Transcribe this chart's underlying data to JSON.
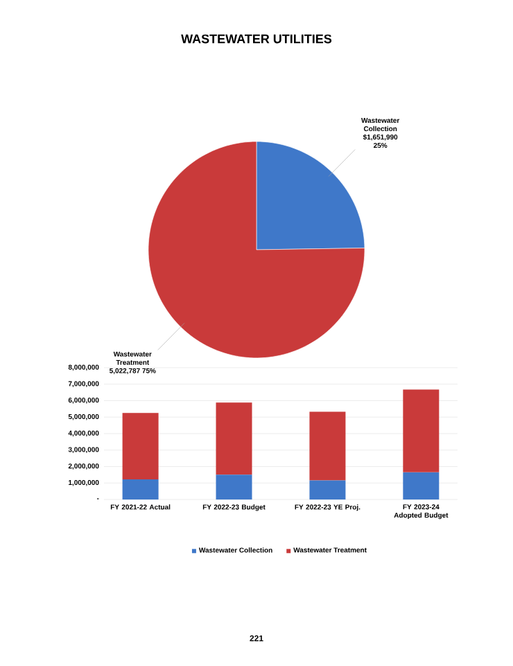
{
  "chart_data": [
    {
      "type": "pie",
      "title": "WASTEWATER UTILITIES",
      "categories": [
        "Wastewater Collection",
        "Wastewater Treatment"
      ],
      "values": [
        1651990,
        5022787
      ],
      "colors": [
        "#3f78c9",
        "#c93a3a"
      ],
      "value_labels": [
        "$1,651,990 25%",
        "5,022,787 75%"
      ]
    },
    {
      "type": "bar",
      "stacked": true,
      "categories": [
        "FY 2021-22 Actual",
        "FY 2022-23 Budget",
        "FY 2022-23 YE Proj.",
        "FY 2023-24 Adopted Budget"
      ],
      "series": [
        {
          "name": "Wastewater Collection",
          "color": "#3f78c9",
          "values": [
            1220000,
            1510000,
            1160000,
            1650000
          ]
        },
        {
          "name": "Wastewater Treatment",
          "color": "#c93a3a",
          "values": [
            4030000,
            4370000,
            4170000,
            5020000
          ]
        }
      ],
      "ylim": [
        0,
        8000000
      ],
      "yticks": [
        {
          "value": 0,
          "label": "-"
        },
        {
          "value": 1000000,
          "label": "1,000,000"
        },
        {
          "value": 2000000,
          "label": "2,000,000"
        },
        {
          "value": 3000000,
          "label": "3,000,000"
        },
        {
          "value": 4000000,
          "label": "4,000,000"
        },
        {
          "value": 5000000,
          "label": "5,000,000"
        },
        {
          "value": 6000000,
          "label": "6,000,000"
        },
        {
          "value": 7000000,
          "label": "7,000,000"
        },
        {
          "value": 8000000,
          "label": "8,000,000"
        }
      ],
      "grid": "y",
      "legend": "bottom",
      "annotations": [
        "221"
      ]
    }
  ]
}
